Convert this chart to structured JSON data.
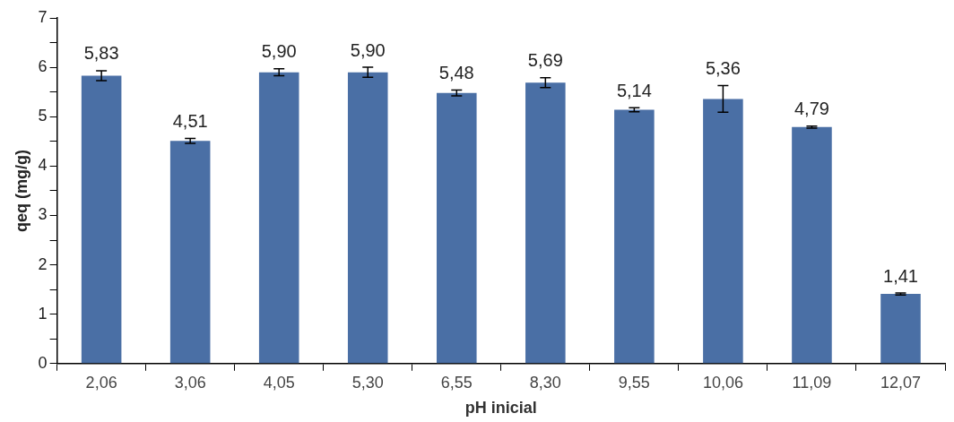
{
  "chart_data": {
    "type": "bar",
    "xlabel": "pH inicial",
    "ylabel": "qeq (mg/g)",
    "categories": [
      "2,06",
      "3,06",
      "4,05",
      "5,30",
      "6,55",
      "8,30",
      "9,55",
      "10,06",
      "11,09",
      "12,07"
    ],
    "values": [
      5.83,
      4.51,
      5.9,
      5.9,
      5.48,
      5.69,
      5.14,
      5.36,
      4.79,
      1.41
    ],
    "errors": [
      0.1,
      0.05,
      0.07,
      0.1,
      0.06,
      0.1,
      0.04,
      0.27,
      0.02,
      0.02
    ],
    "value_labels": [
      "5,83",
      "4,51",
      "5,90",
      "5,90",
      "5,48",
      "5,69",
      "5,14",
      "5,36",
      "4,79",
      "1,41"
    ],
    "color": "#4a6fa5",
    "ylim": [
      0,
      7
    ],
    "yticks": [
      0,
      {
        "value": 0.5,
        "label": null
      },
      1,
      {
        "value": 1.5,
        "label": null
      },
      2,
      {
        "value": 2.5,
        "label": null
      },
      3,
      {
        "value": 3.5,
        "label": null
      },
      4,
      {
        "value": 4.5,
        "label": null
      },
      5,
      {
        "value": 5.5,
        "label": null
      },
      6,
      {
        "value": 6.5,
        "label": null
      },
      7
    ],
    "grid": false,
    "legend": false
  }
}
